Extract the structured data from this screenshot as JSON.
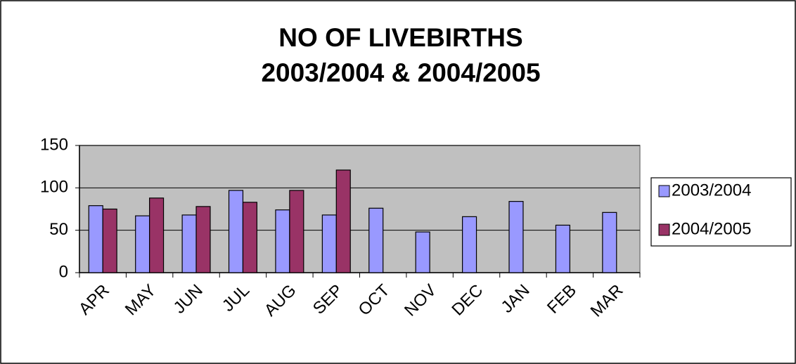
{
  "chart_data": {
    "type": "bar",
    "title": [
      "NO OF LIVEBIRTHS",
      "2003/2004 & 2004/2005"
    ],
    "categories": [
      "APR",
      "MAY",
      "JUN",
      "JUL",
      "AUG",
      "SEP",
      "OCT",
      "NOV",
      "DEC",
      "JAN",
      "FEB",
      "MAR"
    ],
    "series": [
      {
        "name": "2003/2004",
        "color": "#9999ff",
        "values": [
          79,
          67,
          68,
          97,
          74,
          68,
          76,
          48,
          66,
          84,
          56,
          71
        ]
      },
      {
        "name": "2004/2005",
        "color": "#993366",
        "values": [
          75,
          88,
          78,
          83,
          97,
          121,
          null,
          null,
          null,
          null,
          null,
          null
        ]
      }
    ],
    "ylim": [
      0,
      150
    ],
    "yticks": [
      0,
      50,
      100,
      150
    ],
    "grid": true,
    "legend": "right"
  }
}
